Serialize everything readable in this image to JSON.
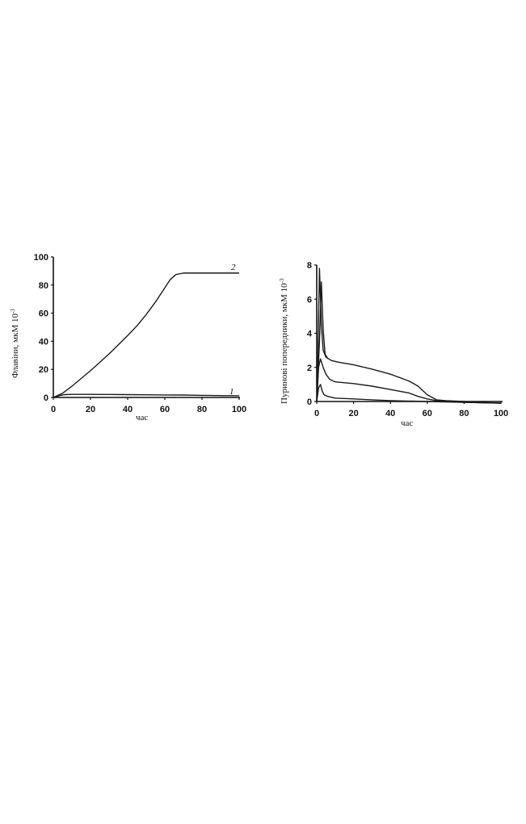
{
  "chart_data": [
    {
      "type": "line",
      "ylabel": "Флавіни, мкМ 10",
      "ylabel_sup": "-3",
      "xlabel": "час",
      "xlim": [
        0,
        100
      ],
      "ylim": [
        0,
        100
      ],
      "xticks": [
        "0",
        "20",
        "40",
        "60",
        "80",
        "100"
      ],
      "yticks": [
        "0",
        "20",
        "40",
        "60",
        "80",
        "100"
      ],
      "grid": false,
      "series": [
        {
          "name": "1",
          "x": [
            0,
            3,
            6,
            10,
            20,
            30,
            40,
            50,
            60,
            70,
            80,
            90,
            100
          ],
          "y": [
            0,
            1.2,
            2,
            2.2,
            2.2,
            2.1,
            2.0,
            1.9,
            1.8,
            1.7,
            1.5,
            1.3,
            1.2
          ]
        },
        {
          "name": "2",
          "x": [
            0,
            5,
            10,
            15,
            20,
            25,
            30,
            35,
            40,
            45,
            50,
            55,
            60,
            63,
            66,
            70,
            75,
            80,
            90,
            100
          ],
          "y": [
            0,
            3,
            8,
            13.5,
            19,
            25,
            31,
            37.5,
            44,
            51,
            59,
            68,
            78,
            84,
            87.5,
            88.5,
            88.5,
            88.5,
            88.5,
            88.5
          ]
        }
      ]
    },
    {
      "type": "line",
      "ylabel": "Пуринові попередники, мкМ 10",
      "ylabel_sup": "-3",
      "xlabel": "час",
      "xlim": [
        0,
        100
      ],
      "ylim": [
        0,
        8
      ],
      "xticks": [
        "0",
        "20",
        "40",
        "60",
        "80",
        "100"
      ],
      "yticks": [
        "0",
        "2",
        "4",
        "6",
        "8"
      ],
      "grid": false,
      "series": [
        {
          "x": [
            0,
            0.8,
            1.5,
            2.5,
            3.5,
            5,
            8,
            12,
            20,
            30,
            40,
            50,
            55,
            60,
            65,
            70,
            80,
            90,
            100
          ],
          "y": [
            0,
            3.5,
            7.8,
            4.5,
            3.0,
            2.6,
            2.4,
            2.3,
            2.15,
            1.9,
            1.6,
            1.2,
            0.9,
            0.4,
            0.1,
            0.05,
            0.0,
            -0.05,
            -0.1
          ]
        },
        {
          "x": [
            0,
            1,
            2,
            3.5,
            5,
            7,
            10,
            20,
            30,
            40,
            50,
            55,
            60,
            65,
            70,
            80,
            100
          ],
          "y": [
            0,
            2.0,
            2.5,
            2.0,
            1.6,
            1.3,
            1.15,
            1.05,
            0.9,
            0.7,
            0.5,
            0.3,
            0.15,
            0.05,
            0.0,
            -0.05,
            -0.1
          ]
        },
        {
          "x": [
            0,
            1,
            2,
            3,
            4,
            6,
            10,
            20,
            30,
            40,
            60,
            80,
            100
          ],
          "y": [
            0,
            0.8,
            1.0,
            0.6,
            0.4,
            0.3,
            0.2,
            0.15,
            0.1,
            0.05,
            0.0,
            -0.05,
            -0.1
          ]
        },
        {
          "x": [
            0,
            1.5,
            2.5,
            3.5,
            4.5,
            6
          ],
          "y": [
            0,
            3.5,
            7.0,
            4.2,
            2.8,
            2.5
          ]
        }
      ]
    }
  ]
}
